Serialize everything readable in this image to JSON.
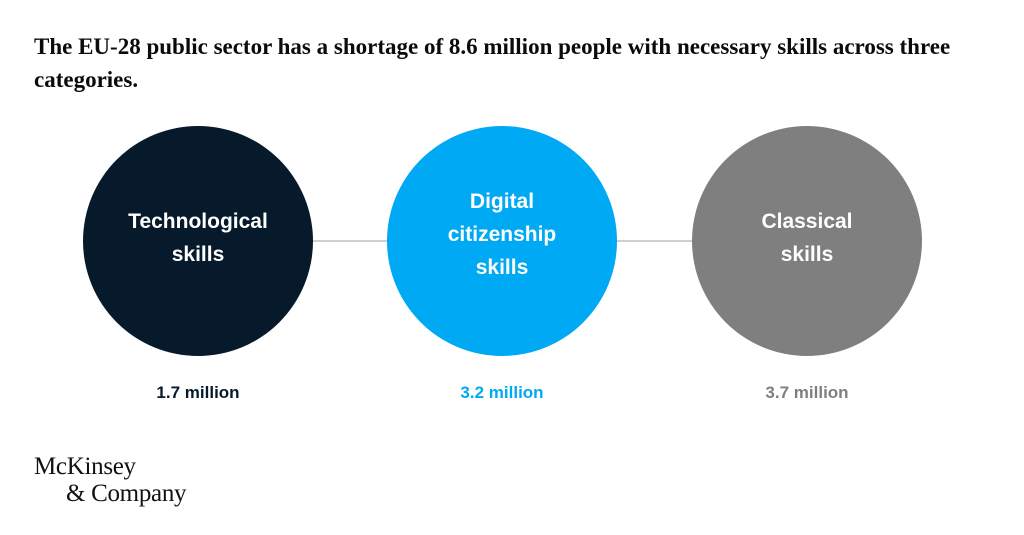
{
  "title": "The EU-28 public sector has a shortage of 8.6 million people with necessary skills across three categories.",
  "colors": {
    "technological": "#071a2c",
    "digital": "#00a9f4",
    "classical": "#7f7f7f",
    "connector": "#cfcfcf"
  },
  "categories": [
    {
      "label": "Technological\nskills",
      "value": "1.7 million"
    },
    {
      "label": "Digital\ncitizenship\nskills",
      "value": "3.2 million"
    },
    {
      "label": "Classical\nskills",
      "value": "3.7 million"
    }
  ],
  "logo": {
    "line1": "McKinsey",
    "line2": "& Company"
  }
}
